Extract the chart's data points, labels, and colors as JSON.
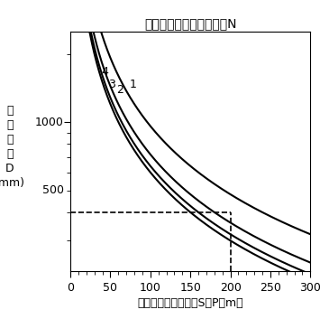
{
  "title": "クラッチ掛合い箇所の数N",
  "ylabel_chars": [
    "安",
    "全",
    "距",
    "離",
    "D",
    "(mm)"
  ],
  "xlabel": "毎分ストローク数（S・P・m）",
  "xmin": 0,
  "xmax": 300,
  "ymin": 220,
  "ymax": 2500,
  "xticks": [
    0,
    50,
    100,
    150,
    200,
    250,
    300
  ],
  "ytick_positions": [
    500,
    1000
  ],
  "ytick_labels": [
    "500",
    "1000"
  ],
  "dashed_x": 200,
  "dashed_y": 400,
  "curve_N": [
    1,
    2,
    3,
    4
  ],
  "background_color": "#ffffff",
  "line_color": "#000000",
  "title_fontsize": 10,
  "label_fontsize": 9,
  "tick_fontsize": 9,
  "formula_k": 48000,
  "label_spm": [
    78,
    62,
    52,
    43
  ]
}
